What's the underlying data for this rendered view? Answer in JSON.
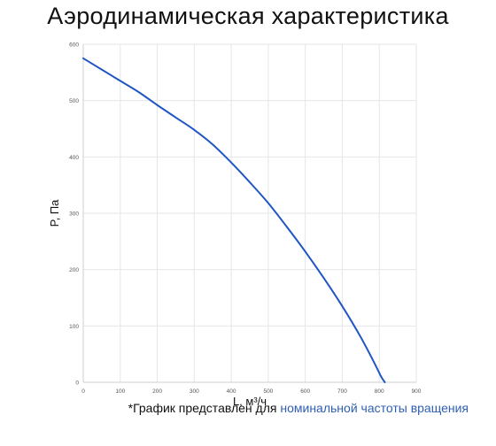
{
  "title": "Аэродинамическая характеристика",
  "footnote": {
    "prefix": "*График представлен для ",
    "highlight": "номинальной частоты вращения"
  },
  "colors": {
    "curve": "#1f56c4",
    "grid": "#e6e6e6",
    "axis": "#cfcfcf",
    "footnote_highlight": "#2f5fb3"
  },
  "chart_data": {
    "type": "line",
    "xlabel": "L, м³/ч",
    "ylabel": "P, Па",
    "xlim": [
      0,
      900
    ],
    "ylim": [
      0,
      600
    ],
    "x_ticks": [
      0,
      100,
      200,
      300,
      400,
      500,
      600,
      700,
      800,
      900
    ],
    "y_ticks": [
      0,
      100,
      200,
      300,
      400,
      500,
      600
    ],
    "grid": true,
    "series": [
      {
        "x": [
          0,
          50,
          100,
          150,
          200,
          250,
          300,
          350,
          400,
          450,
          500,
          550,
          600,
          650,
          700,
          750,
          790,
          805,
          815
        ],
        "y": [
          575,
          555,
          535,
          515,
          492,
          470,
          448,
          422,
          390,
          355,
          318,
          276,
          232,
          185,
          135,
          80,
          30,
          10,
          0
        ]
      }
    ]
  }
}
